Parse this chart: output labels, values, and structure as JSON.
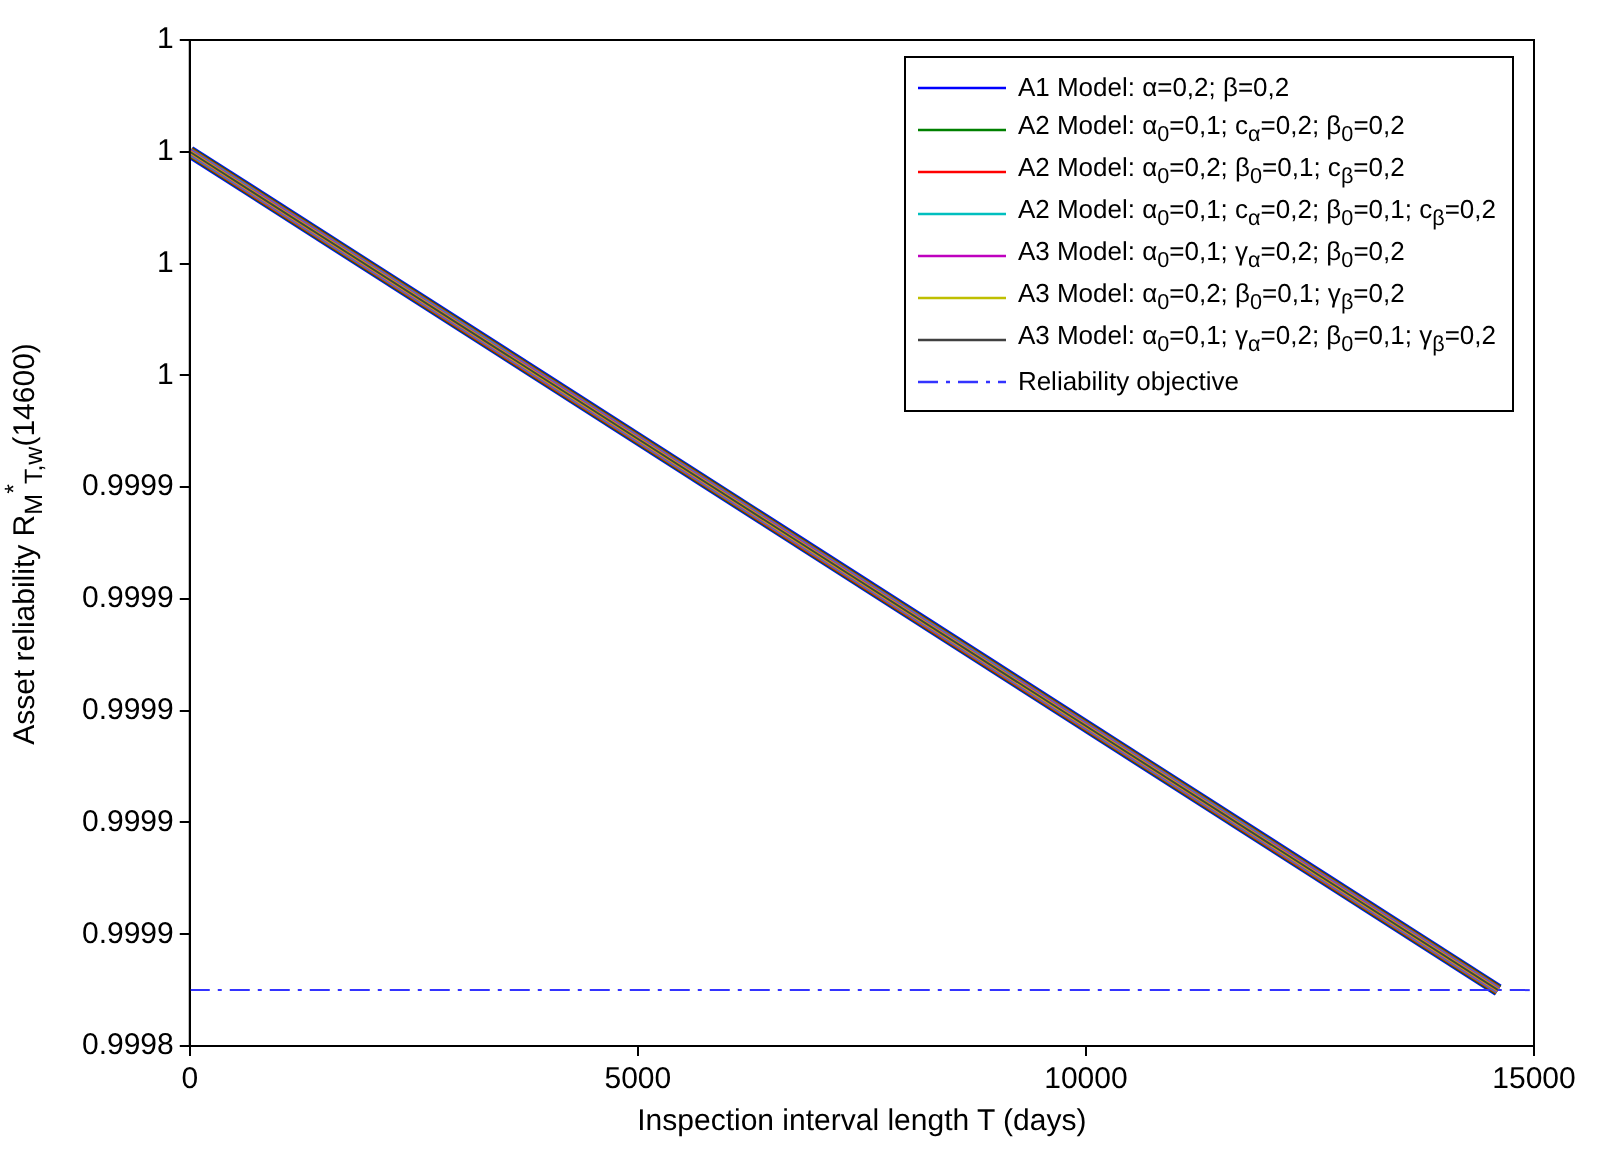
{
  "chart_data": {
    "type": "line",
    "xlabel": "Inspection interval length T (days)",
    "ylabel": "Asset reliability R$_{M}$$^{*}$$_{T,w}$(14600)",
    "x": [
      0,
      14600
    ],
    "series": [
      {
        "name": "A1 Model: α=0,2; β=0,2",
        "color": "#0000ff",
        "values": [
          1,
          0.99985
        ]
      },
      {
        "name": "A2 Model: α$_{0}$=0,1; c$_{α}$=0,2; β$_{0}$=0,2",
        "color": "#008000",
        "values": [
          1,
          0.99985
        ]
      },
      {
        "name": "A2 Model: α$_{0}$=0,2; β$_{0}$=0,1; c$_{β}$=0,2",
        "color": "#ff0000",
        "values": [
          1,
          0.99985
        ]
      },
      {
        "name": "A2 Model: α$_{0}$=0,1; c$_{α}$=0,2; β$_{0}$=0,1; c$_{β}$=0,2",
        "color": "#00bfbf",
        "values": [
          1,
          0.99985
        ]
      },
      {
        "name": "A3 Model: α$_{0}$=0,1; γ$_{α}$=0,2; β$_{0}$=0,2",
        "color": "#bf00bf",
        "values": [
          1,
          0.99985
        ]
      },
      {
        "name": "A3 Model: α$_{0}$=0,2; β$_{0}$=0,1; γ$_{β}$=0,2",
        "color": "#bfbf00",
        "values": [
          1,
          0.99985
        ]
      },
      {
        "name": "A3 Model: α$_{0}$=0,1; γ$_{α}$=0,2; β$_{0}$=0,1; γ$_{β}$=0,2",
        "color": "#404040",
        "values": [
          1,
          0.99985
        ]
      }
    ],
    "ref_lines": [
      {
        "axis": "y",
        "value": 0.99985,
        "label": "Reliability objective",
        "color": "#3333ff",
        "line_style": "dashdot"
      }
    ],
    "xlim": [
      0,
      15000
    ],
    "xticks": [
      0,
      5000,
      10000,
      15000
    ],
    "ylim": [
      0.99984,
      1.00002
    ],
    "yticks": [
      {
        "value": 0.99984,
        "label": "0.9998"
      },
      {
        "value": 0.99986,
        "label": "0.9999"
      },
      {
        "value": 0.99988,
        "label": "0.9999"
      },
      {
        "value": 0.9999,
        "label": "0.9999"
      },
      {
        "value": 0.99992,
        "label": "0.9999"
      },
      {
        "value": 0.99994,
        "label": "0.9999"
      },
      {
        "value": 0.99996,
        "label": "1"
      },
      {
        "value": 0.99998,
        "label": "1"
      },
      {
        "value": 1,
        "label": "1"
      },
      {
        "value": 1.00002,
        "label": "1"
      }
    ],
    "grid": false,
    "legend": "top right"
  }
}
